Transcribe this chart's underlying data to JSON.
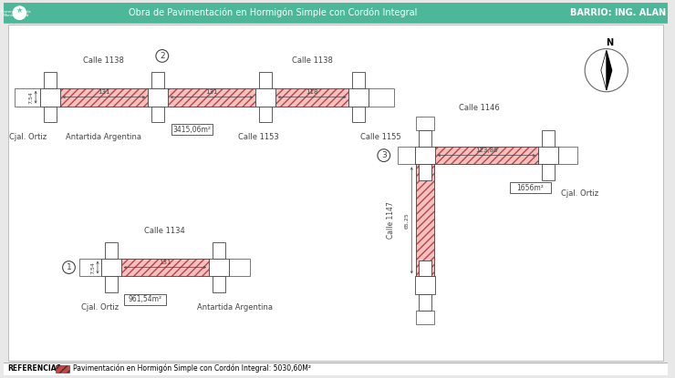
{
  "bg_color": "#e8e8e8",
  "header_color": "#3dab8e",
  "header_text": "Obra de Pavimentación en Hormigón Simple con Cordón Integral",
  "barrio_text": "BARRIO: ING. ALAN",
  "footer_text": "REFERENCIAS:",
  "footer_detail": "Pavimentación en Hormigón Simple con Cordón Integral: 5030,60M²",
  "hatch_color": "#e8a0a0",
  "road_fill": "#f5c0c0",
  "line_color": "#444444",
  "white": "#ffffff",
  "teal_header": "#4db899",
  "body_white": "#f5f5f5"
}
